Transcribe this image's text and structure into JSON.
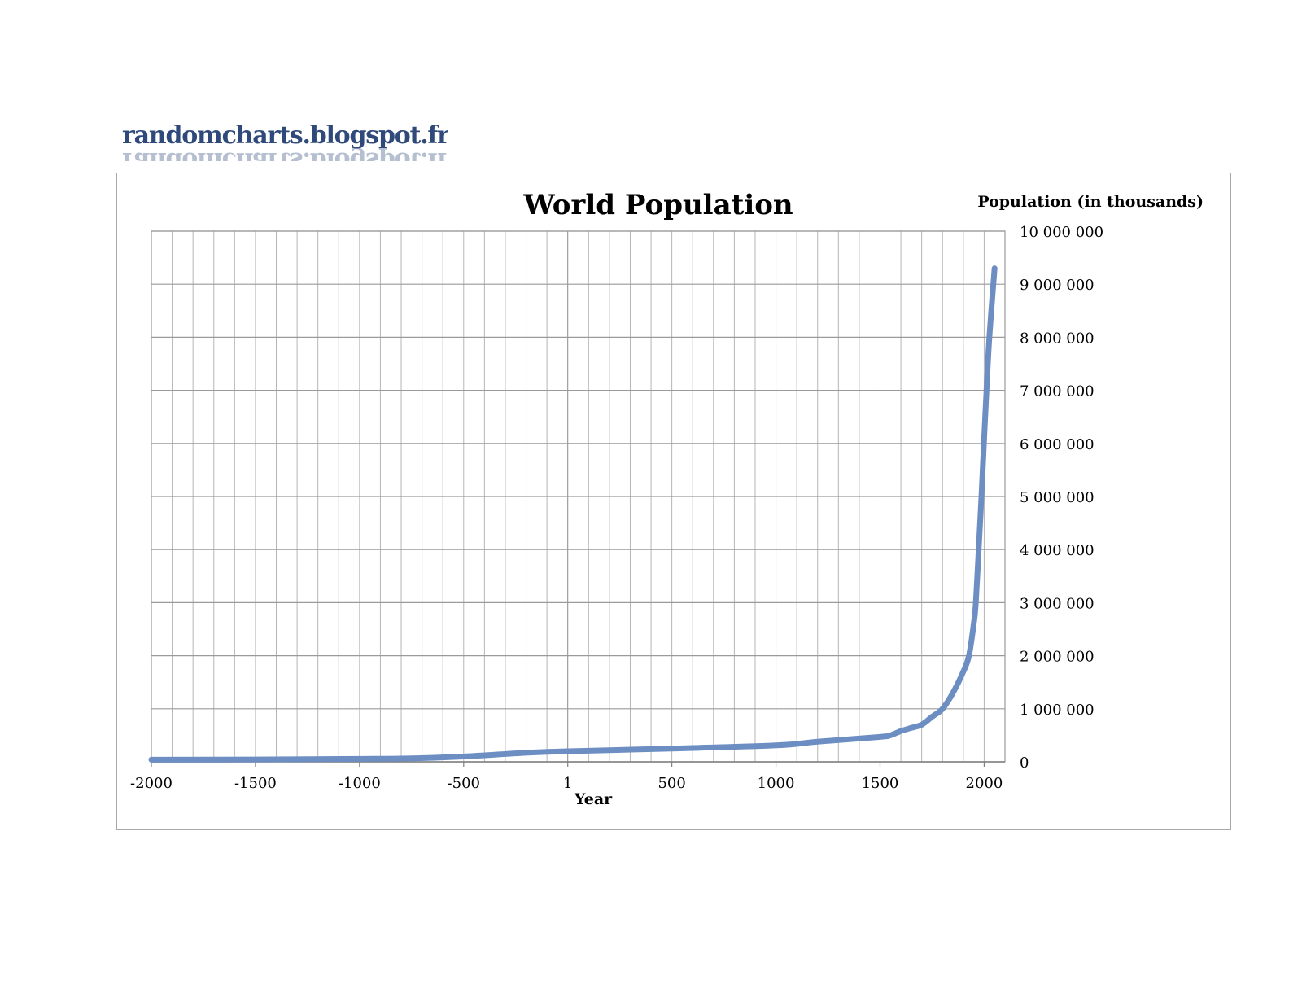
{
  "brand": {
    "text": "randomcharts.blogspot.fr"
  },
  "chart_data": {
    "type": "line",
    "title": "World Population",
    "xlabel": "Year",
    "ylabel": "Population (in thousands)",
    "xlim": [
      -2000,
      2100
    ],
    "ylim": [
      0,
      10000000
    ],
    "x_ticks": [
      -2000,
      -1500,
      -1000,
      -500,
      1,
      500,
      1000,
      1500,
      2000
    ],
    "x_tick_labels": [
      "-2000",
      "-1500",
      "-1000",
      "-500",
      "1",
      "500",
      "1000",
      "1500",
      "2000"
    ],
    "y_ticks": [
      0,
      1000000,
      2000000,
      3000000,
      4000000,
      5000000,
      6000000,
      7000000,
      8000000,
      9000000,
      10000000
    ],
    "y_tick_labels": [
      "0",
      "1 000 000",
      "2 000 000",
      "3 000 000",
      "4 000 000",
      "5 000 000",
      "6 000 000",
      "7 000 000",
      "8 000 000",
      "9 000 000",
      "10 000 000"
    ],
    "grid": true,
    "series": [
      {
        "name": "World Population",
        "color": "#6d8ec3",
        "x": [
          -2000,
          -1500,
          -1000,
          -750,
          -500,
          -200,
          1,
          500,
          1000,
          1200,
          1500,
          1550,
          1600,
          1650,
          1700,
          1750,
          1800,
          1850,
          1900,
          1927,
          1950,
          1960,
          1975,
          1987,
          2000,
          2010,
          2025,
          2050
        ],
        "y": [
          40000,
          45000,
          55000,
          65000,
          100000,
          170000,
          200000,
          250000,
          310000,
          380000,
          470000,
          500000,
          580000,
          640000,
          700000,
          850000,
          1000000,
          1300000,
          1700000,
          2000000,
          2600000,
          3000000,
          4100000,
          5000000,
          6100000,
          6900000,
          8000000,
          9300000
        ]
      }
    ]
  }
}
